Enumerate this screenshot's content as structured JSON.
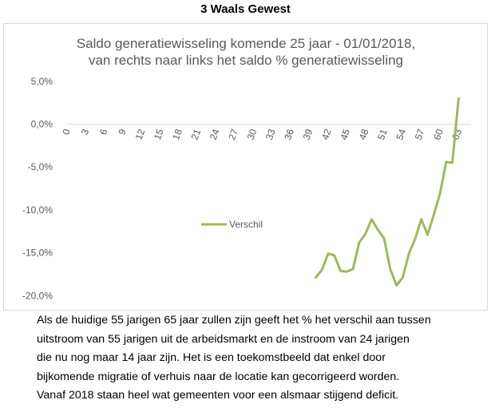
{
  "heading": "3 Waals Gewest",
  "caption_lines": [
    "Als de huidige 55 jarigen 65 jaar zullen zijn geeft het % het verschil aan tussen",
    "uitstroom van 55 jarigen uit de arbeidsmarkt en de instroom van 24 jarigen",
    "die nu nog maar 14 jaar zijn. Het is een toekomstbeeld dat enkel door",
    "bijkomende migratie  of verhuis naar de locatie kan gecorrigeerd worden.",
    "Vanaf 2018 staan heel wat gemeenten voor een alsmaar stijgend deficit."
  ],
  "colors": {
    "series": "#9bbb59",
    "text": "#595959",
    "axis": "#d9d9d9"
  },
  "chart_data": {
    "type": "line",
    "title_lines": [
      "Saldo generatiewisseling komende 25 jaar - 01/01/2018,",
      "van rechts naar links  het saldo % generatiewisseling"
    ],
    "x_tick_labels": [
      "0",
      "3",
      "6",
      "9",
      "12",
      "15",
      "18",
      "21",
      "24",
      "27",
      "30",
      "33",
      "36",
      "39",
      "42",
      "45",
      "48",
      "51",
      "54",
      "57",
      "60",
      "63"
    ],
    "y_tick_labels": [
      "5,0%",
      "0,0%",
      "-5,0%",
      "-10,0%",
      "-15,0%",
      "-20,0%"
    ],
    "y_ticks": [
      5,
      0,
      -5,
      -10,
      -15,
      -20
    ],
    "ylim": [
      -21,
      5
    ],
    "xlim": [
      0,
      65
    ],
    "grid": false,
    "legend_position": "center-left",
    "series": [
      {
        "name": "Verschil",
        "x": [
          40,
          41,
          42,
          43,
          44,
          45,
          46,
          47,
          48,
          49,
          50,
          51,
          52,
          53,
          54,
          55,
          56,
          57,
          58,
          59,
          60,
          61,
          62,
          63
        ],
        "values": [
          -17.9,
          -17.0,
          -15.1,
          -15.3,
          -17.1,
          -17.2,
          -16.9,
          -13.8,
          -12.8,
          -11.1,
          -12.3,
          -13.3,
          -16.9,
          -18.8,
          -17.9,
          -15.1,
          -13.4,
          -11.1,
          -12.9,
          -10.6,
          -8.1,
          -4.4,
          -4.5,
          3.0
        ]
      }
    ]
  }
}
